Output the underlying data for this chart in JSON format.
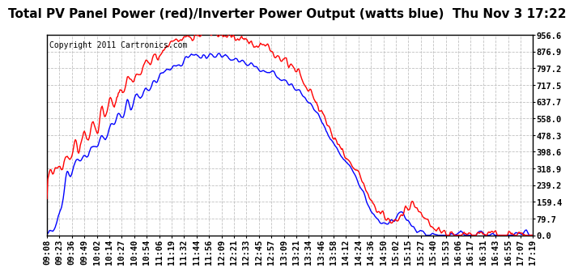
{
  "title": "Total PV Panel Power (red)/Inverter Power Output (watts blue)  Thu Nov 3 17:22",
  "copyright_text": "Copyright 2011 Cartronics.com",
  "ylabel_ticks": [
    0.0,
    79.7,
    159.4,
    239.2,
    318.9,
    398.6,
    478.3,
    558.0,
    637.7,
    717.5,
    797.2,
    876.9,
    956.6
  ],
  "x_tick_labels": [
    "09:08",
    "09:23",
    "09:36",
    "09:49",
    "10:02",
    "10:14",
    "10:27",
    "10:40",
    "10:54",
    "11:06",
    "11:19",
    "11:32",
    "11:44",
    "11:56",
    "12:09",
    "12:21",
    "12:33",
    "12:45",
    "12:57",
    "13:09",
    "13:21",
    "13:34",
    "13:46",
    "13:58",
    "14:12",
    "14:24",
    "14:36",
    "14:50",
    "15:02",
    "15:15",
    "15:27",
    "15:40",
    "15:53",
    "16:06",
    "16:17",
    "16:31",
    "16:43",
    "16:55",
    "17:07",
    "17:19"
  ],
  "red_color": "#ff0000",
  "blue_color": "#0000ff",
  "background_color": "#ffffff",
  "grid_color": "#bbbbbb",
  "title_fontsize": 11,
  "tick_fontsize": 7.5,
  "copyright_fontsize": 7,
  "line_width": 1.0,
  "ymin": 0.0,
  "ymax": 956.6
}
